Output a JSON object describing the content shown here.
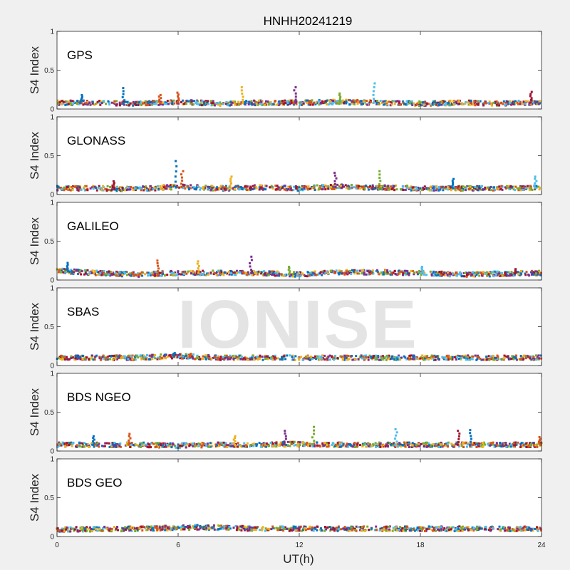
{
  "chart_data": {
    "type": "scatter",
    "title": "HNHH20241219",
    "watermark": "IONISE",
    "xlabel": "UT(h)",
    "xlim": [
      0,
      24
    ],
    "xticks": [
      "0",
      "6",
      "12",
      "18",
      "24"
    ],
    "ylabel": "S4 Index",
    "ylim": [
      0,
      1
    ],
    "yticks": [
      "0",
      "0.5",
      "1"
    ],
    "colors": [
      "#0072BD",
      "#D95319",
      "#EDB120",
      "#7E2F8E",
      "#77AC30",
      "#4DBEEE",
      "#A2142F"
    ],
    "panels": [
      {
        "label": "GPS",
        "baseline": [
          [
            0,
            0.08
          ],
          [
            2,
            0.08
          ],
          [
            4,
            0.07
          ],
          [
            6,
            0.09
          ],
          [
            8,
            0.07
          ],
          [
            10,
            0.08
          ],
          [
            12,
            0.08
          ],
          [
            14,
            0.09
          ],
          [
            16,
            0.08
          ],
          [
            18,
            0.07
          ],
          [
            20,
            0.08
          ],
          [
            22,
            0.07
          ],
          [
            24,
            0.09
          ]
        ],
        "spikes": [
          [
            3.3,
            0.27
          ],
          [
            6.0,
            0.21
          ],
          [
            9.2,
            0.28
          ],
          [
            11.8,
            0.28
          ],
          [
            14.0,
            0.2
          ],
          [
            15.7,
            0.33
          ],
          [
            23.5,
            0.22
          ],
          [
            1.2,
            0.18
          ],
          [
            5.1,
            0.18
          ]
        ]
      },
      {
        "label": "GLONASS",
        "baseline": [
          [
            0,
            0.08
          ],
          [
            2,
            0.08
          ],
          [
            4,
            0.07
          ],
          [
            6,
            0.1
          ],
          [
            8,
            0.08
          ],
          [
            10,
            0.09
          ],
          [
            12,
            0.08
          ],
          [
            14,
            0.1
          ],
          [
            16,
            0.09
          ],
          [
            18,
            0.08
          ],
          [
            20,
            0.08
          ],
          [
            22,
            0.08
          ],
          [
            24,
            0.09
          ]
        ],
        "spikes": [
          [
            5.9,
            0.43
          ],
          [
            6.2,
            0.3
          ],
          [
            8.6,
            0.23
          ],
          [
            13.8,
            0.28
          ],
          [
            16.0,
            0.3
          ],
          [
            23.7,
            0.23
          ],
          [
            2.8,
            0.17
          ],
          [
            19.6,
            0.2
          ]
        ]
      },
      {
        "label": "GALILEO",
        "baseline": [
          [
            0,
            0.12
          ],
          [
            2,
            0.09
          ],
          [
            4,
            0.07
          ],
          [
            6,
            0.09
          ],
          [
            8,
            0.09
          ],
          [
            10,
            0.09
          ],
          [
            12,
            0.07
          ],
          [
            14,
            0.1
          ],
          [
            16,
            0.1
          ],
          [
            18,
            0.09
          ],
          [
            20,
            0.07
          ],
          [
            22,
            0.08
          ],
          [
            24,
            0.09
          ]
        ],
        "spikes": [
          [
            0.5,
            0.22
          ],
          [
            5.0,
            0.25
          ],
          [
            7.0,
            0.24
          ],
          [
            9.6,
            0.3
          ],
          [
            11.5,
            0.17
          ],
          [
            18.1,
            0.17
          ],
          [
            22.7,
            0.14
          ]
        ]
      },
      {
        "label": "SBAS",
        "baseline": [
          [
            0,
            0.1
          ],
          [
            4,
            0.1
          ],
          [
            6,
            0.12
          ],
          [
            8,
            0.1
          ],
          [
            12,
            0.1
          ],
          [
            16,
            0.1
          ],
          [
            20,
            0.1
          ],
          [
            24,
            0.1
          ]
        ],
        "spikes": [
          [
            5.8,
            0.16
          ],
          [
            6.6,
            0.15
          ]
        ]
      },
      {
        "label": "BDS NGEO",
        "baseline": [
          [
            0,
            0.08
          ],
          [
            2,
            0.08
          ],
          [
            4,
            0.08
          ],
          [
            6,
            0.07
          ],
          [
            8,
            0.08
          ],
          [
            10,
            0.08
          ],
          [
            12,
            0.09
          ],
          [
            14,
            0.08
          ],
          [
            16,
            0.08
          ],
          [
            18,
            0.08
          ],
          [
            20,
            0.08
          ],
          [
            22,
            0.08
          ],
          [
            24,
            0.08
          ]
        ],
        "spikes": [
          [
            1.8,
            0.19
          ],
          [
            3.6,
            0.22
          ],
          [
            8.8,
            0.19
          ],
          [
            11.3,
            0.26
          ],
          [
            12.7,
            0.31
          ],
          [
            16.8,
            0.28
          ],
          [
            19.9,
            0.26
          ],
          [
            20.5,
            0.27
          ],
          [
            23.9,
            0.18
          ]
        ]
      },
      {
        "label": "BDS GEO",
        "baseline": [
          [
            0,
            0.09
          ],
          [
            4,
            0.1
          ],
          [
            7,
            0.12
          ],
          [
            10,
            0.1
          ],
          [
            14,
            0.1
          ],
          [
            18,
            0.1
          ],
          [
            24,
            0.1
          ]
        ],
        "spikes": []
      }
    ]
  }
}
